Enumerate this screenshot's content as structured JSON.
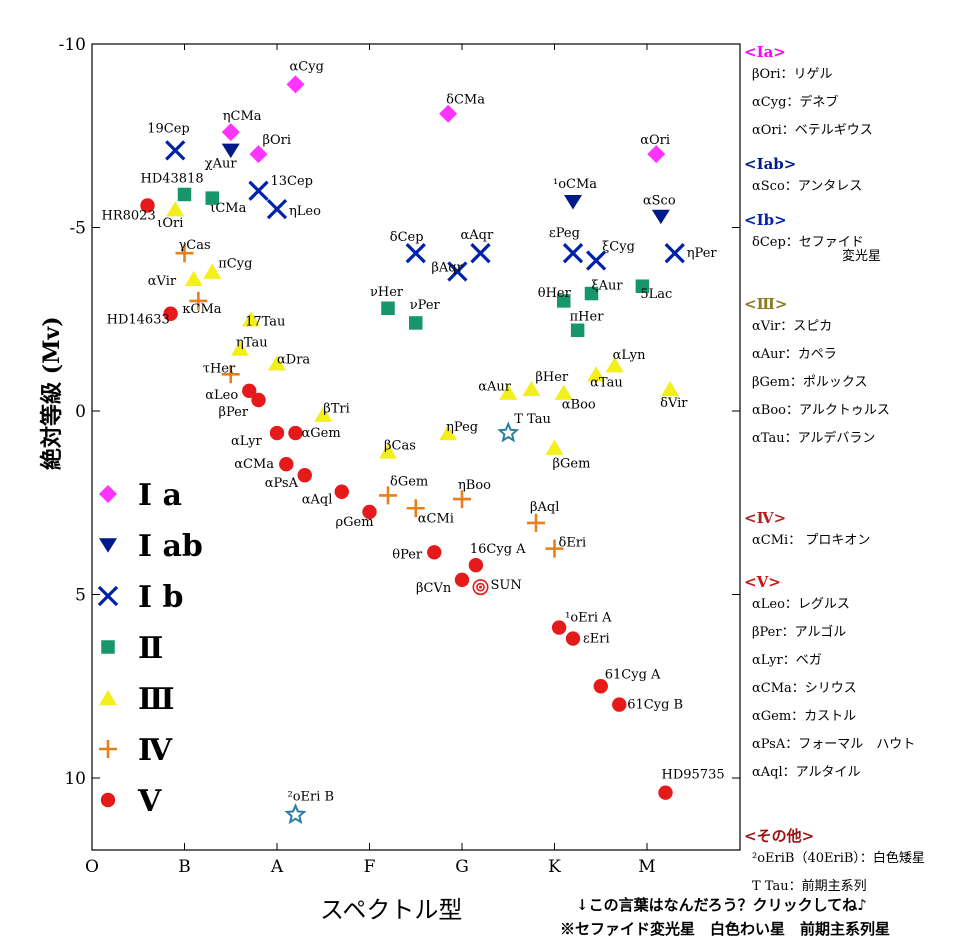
{
  "chart_data": {
    "type": "scatter",
    "xlabel": "スペクトル型",
    "ylabel": "絶対等級 (Mv)",
    "x_ticks": [
      "O",
      "B",
      "A",
      "F",
      "G",
      "K",
      "M"
    ],
    "y_ticks": [
      "-10",
      "-5",
      "0",
      "5",
      "10"
    ],
    "ylim": [
      -10,
      12
    ],
    "y_inverted": true,
    "classes": [
      {
        "key": "Ia",
        "label": "Ⅰ a",
        "marker": "diamond",
        "color": "#ff33ff"
      },
      {
        "key": "Iab",
        "label": "Ⅰ ab",
        "marker": "triangle-down",
        "color": "#001a8c"
      },
      {
        "key": "Ib",
        "label": "Ⅰ b",
        "marker": "x",
        "color": "#0022aa"
      },
      {
        "key": "II",
        "label": "Ⅱ",
        "marker": "square",
        "color": "#17966b"
      },
      {
        "key": "III",
        "label": "Ⅲ",
        "marker": "triangle-up",
        "color": "#f2ef1c"
      },
      {
        "key": "IV",
        "label": "Ⅳ",
        "marker": "plus",
        "color": "#e8801a"
      },
      {
        "key": "V",
        "label": "Ⅴ",
        "marker": "circle",
        "color": "#e51a1a"
      },
      {
        "key": "other",
        "label": "",
        "marker": "star",
        "color": "#2a7fa0"
      },
      {
        "key": "sun",
        "label": "",
        "marker": "sun",
        "color": "#e51a1a"
      }
    ],
    "stars": [
      {
        "name": "αCyg",
        "cls": "Ia",
        "x": 2.2,
        "y": -8.9
      },
      {
        "name": "δCMa",
        "cls": "Ia",
        "x": 3.85,
        "y": -8.1
      },
      {
        "name": "ηCMa",
        "cls": "Ia",
        "x": 1.5,
        "y": -7.6
      },
      {
        "name": "βOri",
        "cls": "Ia",
        "x": 1.8,
        "y": -7.0
      },
      {
        "name": "αOri",
        "cls": "Ia",
        "x": 6.1,
        "y": -7.0
      },
      {
        "name": "χAur",
        "cls": "Iab",
        "x": 1.5,
        "y": -7.1
      },
      {
        "name": "¹οCMa",
        "cls": "Iab",
        "x": 5.2,
        "y": -5.7
      },
      {
        "name": "αSco",
        "cls": "Iab",
        "x": 6.15,
        "y": -5.3
      },
      {
        "name": "19Cep",
        "cls": "Ib",
        "x": 0.9,
        "y": -7.1
      },
      {
        "name": "13Cep",
        "cls": "Ib",
        "x": 1.8,
        "y": -6.0
      },
      {
        "name": "ηLeo",
        "cls": "Ib",
        "x": 2.0,
        "y": -5.5
      },
      {
        "name": "δCep",
        "cls": "Ib",
        "x": 3.5,
        "y": -4.3
      },
      {
        "name": "βAqr",
        "cls": "Ib",
        "x": 3.95,
        "y": -3.8
      },
      {
        "name": "αAqr",
        "cls": "Ib",
        "x": 4.2,
        "y": -4.3
      },
      {
        "name": "εPeg",
        "cls": "Ib",
        "x": 5.2,
        "y": -4.3
      },
      {
        "name": "ξCyg",
        "cls": "Ib",
        "x": 5.45,
        "y": -4.1
      },
      {
        "name": "ηPer",
        "cls": "Ib",
        "x": 6.3,
        "y": -4.3
      },
      {
        "name": "HD43818",
        "cls": "II",
        "x": 1.0,
        "y": -5.9
      },
      {
        "name": "ιCMa",
        "cls": "II",
        "x": 1.3,
        "y": -5.8
      },
      {
        "name": "νHer",
        "cls": "II",
        "x": 3.2,
        "y": -2.8
      },
      {
        "name": "νPer",
        "cls": "II",
        "x": 3.5,
        "y": -2.4
      },
      {
        "name": "θHer",
        "cls": "II",
        "x": 5.1,
        "y": -3.0
      },
      {
        "name": "ξAur",
        "cls": "II",
        "x": 5.4,
        "y": -3.2
      },
      {
        "name": "πHer",
        "cls": "II",
        "x": 5.25,
        "y": -2.2
      },
      {
        "name": "5Lac",
        "cls": "II",
        "x": 5.95,
        "y": -3.4
      },
      {
        "name": "ιOri",
        "cls": "III",
        "x": 0.9,
        "y": -5.5
      },
      {
        "name": "πCyg",
        "cls": "III",
        "x": 1.3,
        "y": -3.8
      },
      {
        "name": "αVir",
        "cls": "III",
        "x": 1.1,
        "y": -3.6
      },
      {
        "name": "17Tau",
        "cls": "III",
        "x": 1.72,
        "y": -2.5
      },
      {
        "name": "ηTau",
        "cls": "III",
        "x": 1.6,
        "y": -1.7
      },
      {
        "name": "αDra",
        "cls": "III",
        "x": 2.0,
        "y": -1.3
      },
      {
        "name": "βTri",
        "cls": "III",
        "x": 2.5,
        "y": 0.1
      },
      {
        "name": "βCas",
        "cls": "III",
        "x": 3.2,
        "y": 1.1
      },
      {
        "name": "ηPeg",
        "cls": "III",
        "x": 3.85,
        "y": 0.6
      },
      {
        "name": "αAur",
        "cls": "III",
        "x": 4.5,
        "y": -0.5
      },
      {
        "name": "βHer",
        "cls": "III",
        "x": 4.75,
        "y": -0.6
      },
      {
        "name": "βGem",
        "cls": "III",
        "x": 5.0,
        "y": 1.0
      },
      {
        "name": "αBoo",
        "cls": "III",
        "x": 5.1,
        "y": -0.5
      },
      {
        "name": "αTau",
        "cls": "III",
        "x": 5.45,
        "y": -1.0
      },
      {
        "name": "αLyn",
        "cls": "III",
        "x": 5.65,
        "y": -1.25
      },
      {
        "name": "δVir",
        "cls": "III",
        "x": 6.25,
        "y": -0.6
      },
      {
        "name": "γCas",
        "cls": "IV",
        "x": 1.0,
        "y": -4.3
      },
      {
        "name": "κCMa",
        "cls": "IV",
        "x": 1.15,
        "y": -3.0
      },
      {
        "name": "τHer",
        "cls": "IV",
        "x": 1.5,
        "y": -1.0
      },
      {
        "name": "δGem",
        "cls": "IV",
        "x": 3.2,
        "y": 2.3
      },
      {
        "name": "αCMi",
        "cls": "IV",
        "x": 3.5,
        "y": 2.65
      },
      {
        "name": "ηBoo",
        "cls": "IV",
        "x": 4.0,
        "y": 2.4
      },
      {
        "name": "βAql",
        "cls": "IV",
        "x": 4.8,
        "y": 3.05
      },
      {
        "name": "δEri",
        "cls": "IV",
        "x": 5.0,
        "y": 3.75
      },
      {
        "name": "HR8023",
        "cls": "V",
        "x": 0.6,
        "y": -5.6
      },
      {
        "name": "HD14633",
        "cls": "V",
        "x": 0.85,
        "y": -2.65
      },
      {
        "name": "αLeo",
        "cls": "V",
        "x": 1.7,
        "y": -0.55
      },
      {
        "name": "βPer",
        "cls": "V",
        "x": 1.8,
        "y": -0.3
      },
      {
        "name": "αLyr",
        "cls": "V",
        "x": 2.0,
        "y": 0.6
      },
      {
        "name": "αGem",
        "cls": "V",
        "x": 2.2,
        "y": 0.6
      },
      {
        "name": "αCMa",
        "cls": "V",
        "x": 2.1,
        "y": 1.45
      },
      {
        "name": "αPsA",
        "cls": "V",
        "x": 2.3,
        "y": 1.75
      },
      {
        "name": "αAql",
        "cls": "V",
        "x": 2.7,
        "y": 2.2
      },
      {
        "name": "ρGem",
        "cls": "V",
        "x": 3.0,
        "y": 2.75
      },
      {
        "name": "θPer",
        "cls": "V",
        "x": 3.7,
        "y": 3.85
      },
      {
        "name": "16Cyg A",
        "cls": "V",
        "x": 4.15,
        "y": 4.2
      },
      {
        "name": "βCVn",
        "cls": "V",
        "x": 4.0,
        "y": 4.6
      },
      {
        "name": "¹οEri A",
        "cls": "V",
        "x": 5.05,
        "y": 5.9
      },
      {
        "name": "εEri",
        "cls": "V",
        "x": 5.2,
        "y": 6.2
      },
      {
        "name": "61Cyg A",
        "cls": "V",
        "x": 5.5,
        "y": 7.5
      },
      {
        "name": "61Cyg B",
        "cls": "V",
        "x": 5.7,
        "y": 8.0
      },
      {
        "name": "HD95735",
        "cls": "V",
        "x": 6.2,
        "y": 10.4
      },
      {
        "name": "T Tau",
        "cls": "other",
        "x": 4.5,
        "y": 0.6
      },
      {
        "name": "²οEri B",
        "cls": "other",
        "x": 2.2,
        "y": 11.0
      },
      {
        "name": "SUN",
        "cls": "sun",
        "x": 4.2,
        "y": 4.8
      }
    ]
  },
  "side_panel": {
    "groups": [
      {
        "head": "<Ⅰa>",
        "color": "#ff00ff",
        "items": [
          "βOri：リゲル",
          "αCyg：デネブ",
          "αOri：ベテルギウス"
        ]
      },
      {
        "head": "<Ⅰab>",
        "color": "#001a8c",
        "items": [
          "αSco：アンタレス"
        ]
      },
      {
        "head": "<Ⅰb>",
        "color": "#0022aa",
        "items": [
          "δCep：セファイド",
          "変光星"
        ]
      },
      {
        "head": "<Ⅲ>",
        "color": "#8a7a20",
        "items": [
          "αVir：スピカ",
          "αAur：カペラ",
          "βGem：ポルックス",
          "αBoo：アルクトゥルス",
          "αTau：アルデバラン"
        ]
      },
      {
        "head": "<Ⅳ>",
        "color": "#b02020",
        "items": [
          "αCMi： プロキオン"
        ]
      },
      {
        "head": "<Ⅴ>",
        "color": "#d01010",
        "items": [
          "αLeo：レグルス",
          "βPer：アルゴル",
          "αLyr：ベガ",
          "αCMa：シリウス",
          "αGem：カストル",
          "αPsA：フォーマル　ハウト",
          "αAql：アルタイル"
        ]
      },
      {
        "head": "<その他>",
        "color": "#a01010",
        "items": [
          "²οEriB（40EriB）：白色矮星",
          "T Tau：前期主系列"
        ]
      }
    ]
  },
  "notes": {
    "line1": "↓この言葉はなんだろう？クリックしてね♪",
    "line2": "※セファイド変光星　白色わい星　前期主系列星"
  },
  "colors": {
    "Ia": "#ff33ff",
    "Iab": "#001a8c",
    "Ib": "#0022aa",
    "II": "#17966b",
    "III": "#f2ef1c",
    "IV": "#e8801a",
    "V": "#e51a1a",
    "other": "#2a7fa0"
  }
}
